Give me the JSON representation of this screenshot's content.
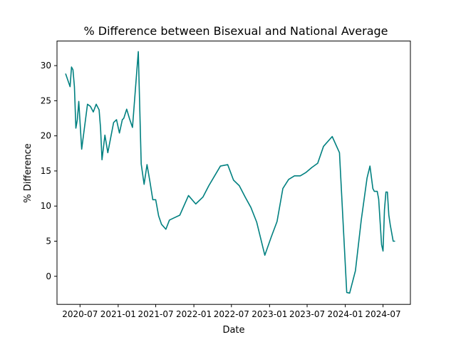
{
  "chart_data": {
    "type": "line",
    "title": "% Difference between Bisexual and National Average",
    "xlabel": "Date",
    "ylabel": "% Difference",
    "grid": false,
    "line_color": "#008080",
    "x_ticks": [
      "2020-07",
      "2021-01",
      "2021-07",
      "2022-01",
      "2022-07",
      "2023-01",
      "2023-07",
      "2024-01",
      "2024-07"
    ],
    "y_ticks": [
      0,
      5,
      10,
      15,
      20,
      25,
      30
    ],
    "xlim": [
      "2020-03-12",
      "2024-11-10"
    ],
    "ylim": [
      -4.0,
      33.5
    ],
    "series": [
      {
        "x": [
          "2020-04-23",
          "2020-05-14",
          "2020-05-21",
          "2020-05-28",
          "2020-06-04",
          "2020-06-11",
          "2020-06-18",
          "2020-06-25",
          "2020-07-09",
          "2020-08-06",
          "2020-08-20",
          "2020-09-03",
          "2020-09-17",
          "2020-10-01",
          "2020-10-08",
          "2020-10-15",
          "2020-10-29",
          "2020-11-12",
          "2020-12-10",
          "2020-12-24",
          "2021-01-07",
          "2021-01-21",
          "2021-01-28",
          "2021-02-11",
          "2021-02-25",
          "2021-03-11",
          "2021-04-08",
          "2021-04-22",
          "2021-05-06",
          "2021-05-20",
          "2021-06-03",
          "2021-06-17",
          "2021-07-01",
          "2021-07-15",
          "2021-07-29",
          "2021-08-19",
          "2021-09-05",
          "2021-09-19",
          "2021-10-25",
          "2021-12-06",
          "2022-01-10",
          "2022-02-14",
          "2022-03-14",
          "2022-05-09",
          "2022-06-13",
          "2022-07-11",
          "2022-08-08",
          "2022-09-05",
          "2022-10-03",
          "2022-10-31",
          "2022-12-09",
          "2023-01-09",
          "2023-02-06",
          "2023-03-06",
          "2023-04-03",
          "2023-05-01",
          "2023-05-29",
          "2023-06-26",
          "2023-07-24",
          "2023-08-21",
          "2023-09-18",
          "2023-10-30",
          "2023-12-04",
          "2024-01-08",
          "2024-01-22",
          "2024-02-19",
          "2024-03-18",
          "2024-04-15",
          "2024-04-29",
          "2024-05-13",
          "2024-05-20",
          "2024-06-03",
          "2024-06-10",
          "2024-06-24",
          "2024-07-01",
          "2024-07-08",
          "2024-07-15",
          "2024-07-22",
          "2024-07-29",
          "2024-08-05",
          "2024-08-19",
          "2024-08-26"
        ],
        "values": [
          28.8,
          27.0,
          29.8,
          29.4,
          27.0,
          21.1,
          22.3,
          24.9,
          18.1,
          24.5,
          24.2,
          23.4,
          24.5,
          23.7,
          21.1,
          16.6,
          20.1,
          17.6,
          21.9,
          22.3,
          20.4,
          22.3,
          22.5,
          23.8,
          22.4,
          21.2,
          32.0,
          16.0,
          13.1,
          15.9,
          13.5,
          10.9,
          10.9,
          8.6,
          7.4,
          6.7,
          8.0,
          8.2,
          8.7,
          11.5,
          10.3,
          11.3,
          12.9,
          15.7,
          15.9,
          13.7,
          12.9,
          11.3,
          9.8,
          7.7,
          3.0,
          5.6,
          7.8,
          12.5,
          13.8,
          14.3,
          14.3,
          14.8,
          15.5,
          16.1,
          18.5,
          19.9,
          17.6,
          -2.3,
          -2.4,
          0.8,
          8.0,
          14.0,
          15.7,
          12.5,
          12.1,
          12.1,
          11.0,
          4.5,
          3.6,
          9.5,
          12.0,
          12.0,
          8.7,
          7.3,
          5.0,
          5.0
        ]
      }
    ]
  }
}
